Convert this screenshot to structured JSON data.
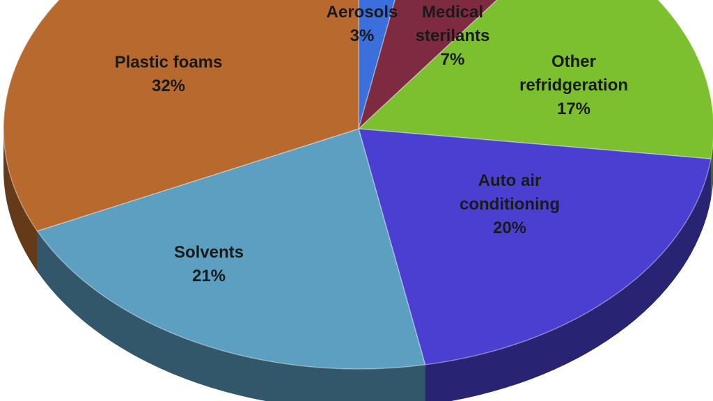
{
  "chart_data": {
    "type": "pie",
    "style": "3d",
    "slices": [
      {
        "name": "Aerosols",
        "label_lines": [
          "Aerosols",
          "3%"
        ],
        "value": 3,
        "color": "#3a6fdc"
      },
      {
        "name": "Medical sterilants",
        "label_lines": [
          "Medical",
          "sterilants",
          "7%"
        ],
        "value": 7,
        "color": "#7e2a40"
      },
      {
        "name": "Other refridgeration",
        "label_lines": [
          "Other",
          "refridgeration",
          "17%"
        ],
        "value": 17,
        "color": "#7cbf2f"
      },
      {
        "name": "Auto air conditioning",
        "label_lines": [
          "Auto air",
          "conditioning",
          "20%"
        ],
        "value": 20,
        "color": "#4b3fd1"
      },
      {
        "name": "Solvents",
        "label_lines": [
          "Solvents",
          "21%"
        ],
        "value": 21,
        "color": "#5d9fc0"
      },
      {
        "name": "Plastic foams",
        "label_lines": [
          "Plastic foams",
          "32%"
        ],
        "value": 32,
        "color": "#b8692e"
      }
    ]
  }
}
